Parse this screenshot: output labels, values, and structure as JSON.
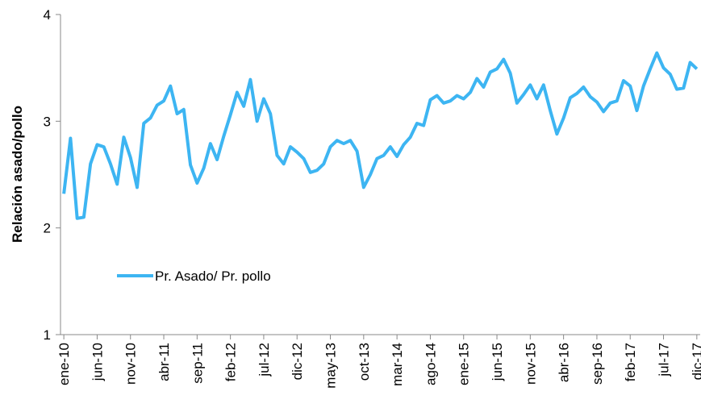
{
  "chart_data": {
    "type": "line",
    "y_label": "Relación  asado/pollo",
    "categories": [
      "ene-10",
      null,
      null,
      null,
      null,
      "jun-10",
      null,
      null,
      null,
      null,
      "nov-10",
      null,
      null,
      null,
      null,
      "abr-11",
      null,
      null,
      null,
      null,
      "sep-11",
      null,
      null,
      null,
      null,
      "feb-12",
      null,
      null,
      null,
      null,
      "jul-12",
      null,
      null,
      null,
      null,
      "dic-12",
      null,
      null,
      null,
      null,
      "may-13",
      null,
      null,
      null,
      null,
      "oct-13",
      null,
      null,
      null,
      null,
      "mar-14",
      null,
      null,
      null,
      null,
      "ago-14",
      null,
      null,
      null,
      null,
      "ene-15",
      null,
      null,
      null,
      null,
      "jun-15",
      null,
      null,
      null,
      null,
      "nov-15",
      null,
      null,
      null,
      null,
      "abr-16",
      null,
      null,
      null,
      null,
      "sep-16",
      null,
      null,
      null,
      null,
      "feb-17",
      null,
      null,
      null,
      null,
      "jul-17",
      null,
      null,
      null,
      null,
      "dic-17"
    ],
    "series": [
      {
        "name": "Pr. Asado/ Pr. pollo",
        "color": "#3db5f2",
        "values": [
          2.32,
          2.84,
          2.09,
          2.1,
          2.6,
          2.78,
          2.76,
          2.6,
          2.41,
          2.85,
          2.66,
          2.38,
          2.98,
          3.03,
          3.15,
          3.19,
          3.33,
          3.07,
          3.11,
          2.59,
          2.42,
          2.56,
          2.79,
          2.64,
          2.86,
          3.06,
          3.27,
          3.14,
          3.39,
          3.0,
          3.21,
          3.07,
          2.68,
          2.6,
          2.76,
          2.71,
          2.65,
          2.52,
          2.54,
          2.6,
          2.76,
          2.82,
          2.79,
          2.82,
          2.72,
          2.38,
          2.5,
          2.65,
          2.68,
          2.76,
          2.67,
          2.78,
          2.85,
          2.98,
          2.96,
          3.2,
          3.24,
          3.17,
          3.19,
          3.24,
          3.21,
          3.27,
          3.4,
          3.32,
          3.46,
          3.49,
          3.58,
          3.45,
          3.17,
          3.25,
          3.34,
          3.21,
          3.34,
          3.1,
          2.88,
          3.03,
          3.22,
          3.26,
          3.32,
          3.23,
          3.18,
          3.09,
          3.17,
          3.19,
          3.38,
          3.33,
          3.1,
          3.33,
          3.49,
          3.64,
          3.5,
          3.44,
          3.3,
          3.31,
          3.55,
          3.49
        ]
      }
    ],
    "ylim": [
      1,
      4
    ],
    "yticks": [
      1,
      2,
      3,
      4
    ],
    "grid": false,
    "legend": "left"
  }
}
